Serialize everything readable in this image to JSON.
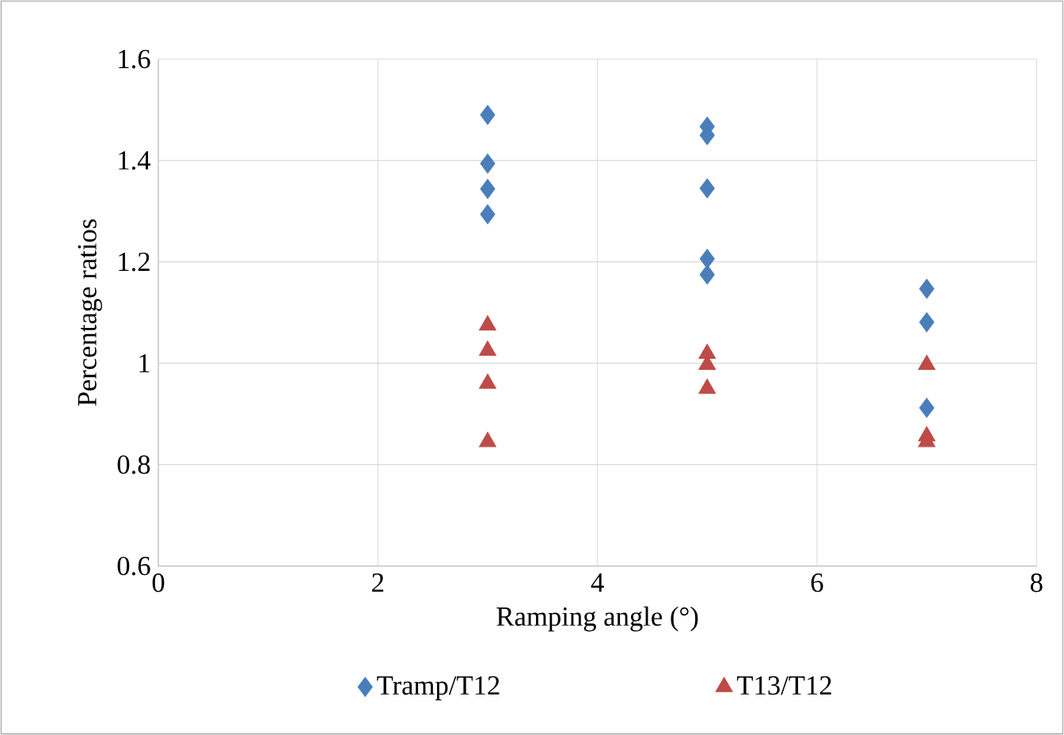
{
  "chart_data": {
    "type": "scatter",
    "xlabel": "Ramping angle (°)",
    "ylabel": "Percentage ratios",
    "xlim": [
      0,
      8
    ],
    "xticks": [
      0,
      2,
      4,
      6,
      8
    ],
    "ylim": [
      0.6,
      1.6
    ],
    "yticks": [
      {
        "value": 0.6,
        "label": "0.6"
      },
      {
        "value": 0.8,
        "label": "0.8"
      },
      {
        "value": 1,
        "label": "1"
      },
      {
        "value": 1.2,
        "label": "1.2"
      },
      {
        "value": 1.4,
        "label": "1.4"
      },
      {
        "value": 1.6,
        "label": "1.6"
      }
    ],
    "grid": true,
    "legend": "bottom",
    "series": [
      {
        "name": "Tramp/T12",
        "color": "#4a7ebb",
        "marker": "diamond",
        "x": [
          3,
          3,
          3,
          3,
          5,
          5,
          5,
          5,
          5,
          7,
          7,
          7
        ],
        "values": [
          1.49,
          1.394,
          1.344,
          1.294,
          1.467,
          1.45,
          1.345,
          1.206,
          1.175,
          1.147,
          1.081,
          0.912
        ]
      },
      {
        "name": "T13/T12",
        "color": "#be4b48",
        "marker": "triangle",
        "x": [
          3,
          3,
          3,
          3,
          5,
          5,
          5,
          7,
          7,
          7
        ],
        "values": [
          1.075,
          1.025,
          0.96,
          0.845,
          1.019,
          0.997,
          0.95,
          0.997,
          0.856,
          0.845
        ]
      }
    ]
  }
}
